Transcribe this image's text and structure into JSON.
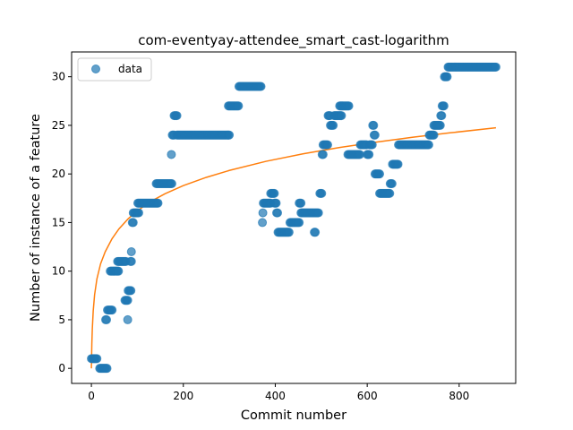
{
  "chart_data": {
    "type": "scatter",
    "title": "com-eventyay-attendee_smart_cast-logarithm",
    "xlabel": "Commit number",
    "ylabel": "Number of instance of a feature",
    "xlim": [
      -43,
      923
    ],
    "ylim": [
      -1.55,
      32.55
    ],
    "xticks": [
      0,
      200,
      400,
      600,
      800
    ],
    "yticks": [
      0,
      5,
      10,
      15,
      20,
      25,
      30
    ],
    "grid": false,
    "legend": {
      "placement": "top-left",
      "entries": [
        "data"
      ]
    },
    "colors": {
      "data": "#1f77b4",
      "fit": "#ff7f0e"
    },
    "series": [
      {
        "name": "data",
        "kind": "scatter",
        "segments": [
          [
            0,
            12,
            1
          ],
          [
            18,
            34,
            0
          ],
          [
            31,
            34,
            5
          ],
          [
            35,
            45,
            6
          ],
          [
            41,
            60,
            10
          ],
          [
            57,
            75,
            11
          ],
          [
            73,
            80,
            7
          ],
          [
            79,
            80,
            5
          ],
          [
            80,
            87,
            8
          ],
          [
            85,
            88,
            11
          ],
          [
            87,
            88,
            12
          ],
          [
            89,
            91,
            15
          ],
          [
            91,
            104,
            16
          ],
          [
            101,
            145,
            17
          ],
          [
            141,
            175,
            19
          ],
          [
            174,
            175,
            22
          ],
          [
            176,
            180,
            24
          ],
          [
            180,
            186,
            26
          ],
          [
            186,
            300,
            24
          ],
          [
            298,
            320,
            27
          ],
          [
            321,
            370,
            29
          ],
          [
            372,
            373,
            15
          ],
          [
            373,
            374,
            16
          ],
          [
            374,
            390,
            17
          ],
          [
            390,
            398,
            18
          ],
          [
            398,
            402,
            17
          ],
          [
            403,
            406,
            16
          ],
          [
            406,
            430,
            14
          ],
          [
            432,
            452,
            15
          ],
          [
            452,
            456,
            17
          ],
          [
            456,
            495,
            16
          ],
          [
            485,
            487,
            14
          ],
          [
            497,
            502,
            18
          ],
          [
            502,
            504,
            22
          ],
          [
            504,
            515,
            23
          ],
          [
            515,
            520,
            26
          ],
          [
            520,
            527,
            25
          ],
          [
            528,
            545,
            26
          ],
          [
            540,
            560,
            27
          ],
          [
            558,
            585,
            22
          ],
          [
            585,
            600,
            23
          ],
          [
            600,
            605,
            22
          ],
          [
            605,
            612,
            23
          ],
          [
            612,
            615,
            25
          ],
          [
            615,
            617,
            24
          ],
          [
            617,
            627,
            20
          ],
          [
            627,
            650,
            18
          ],
          [
            650,
            655,
            19
          ],
          [
            655,
            668,
            21
          ],
          [
            668,
            735,
            23
          ],
          [
            735,
            745,
            24
          ],
          [
            745,
            760,
            25
          ],
          [
            760,
            763,
            26
          ],
          [
            763,
            768,
            27
          ],
          [
            768,
            775,
            30
          ],
          [
            776,
            880,
            31
          ]
        ]
      },
      {
        "name": "fit",
        "kind": "line",
        "x": [
          0,
          1,
          2,
          4,
          7,
          12,
          20,
          30,
          45,
          60,
          80,
          100,
          130,
          160,
          200,
          250,
          300,
          380,
          460,
          540,
          620,
          700,
          780,
          880
        ],
        "y": [
          0,
          2.56,
          4.06,
          5.92,
          7.58,
          9.2,
          10.76,
          11.99,
          13.34,
          14.35,
          15.39,
          16.21,
          17.19,
          17.96,
          18.8,
          19.65,
          20.36,
          21.3,
          22.07,
          22.72,
          23.28,
          23.78,
          24.23,
          24.75
        ]
      }
    ]
  }
}
